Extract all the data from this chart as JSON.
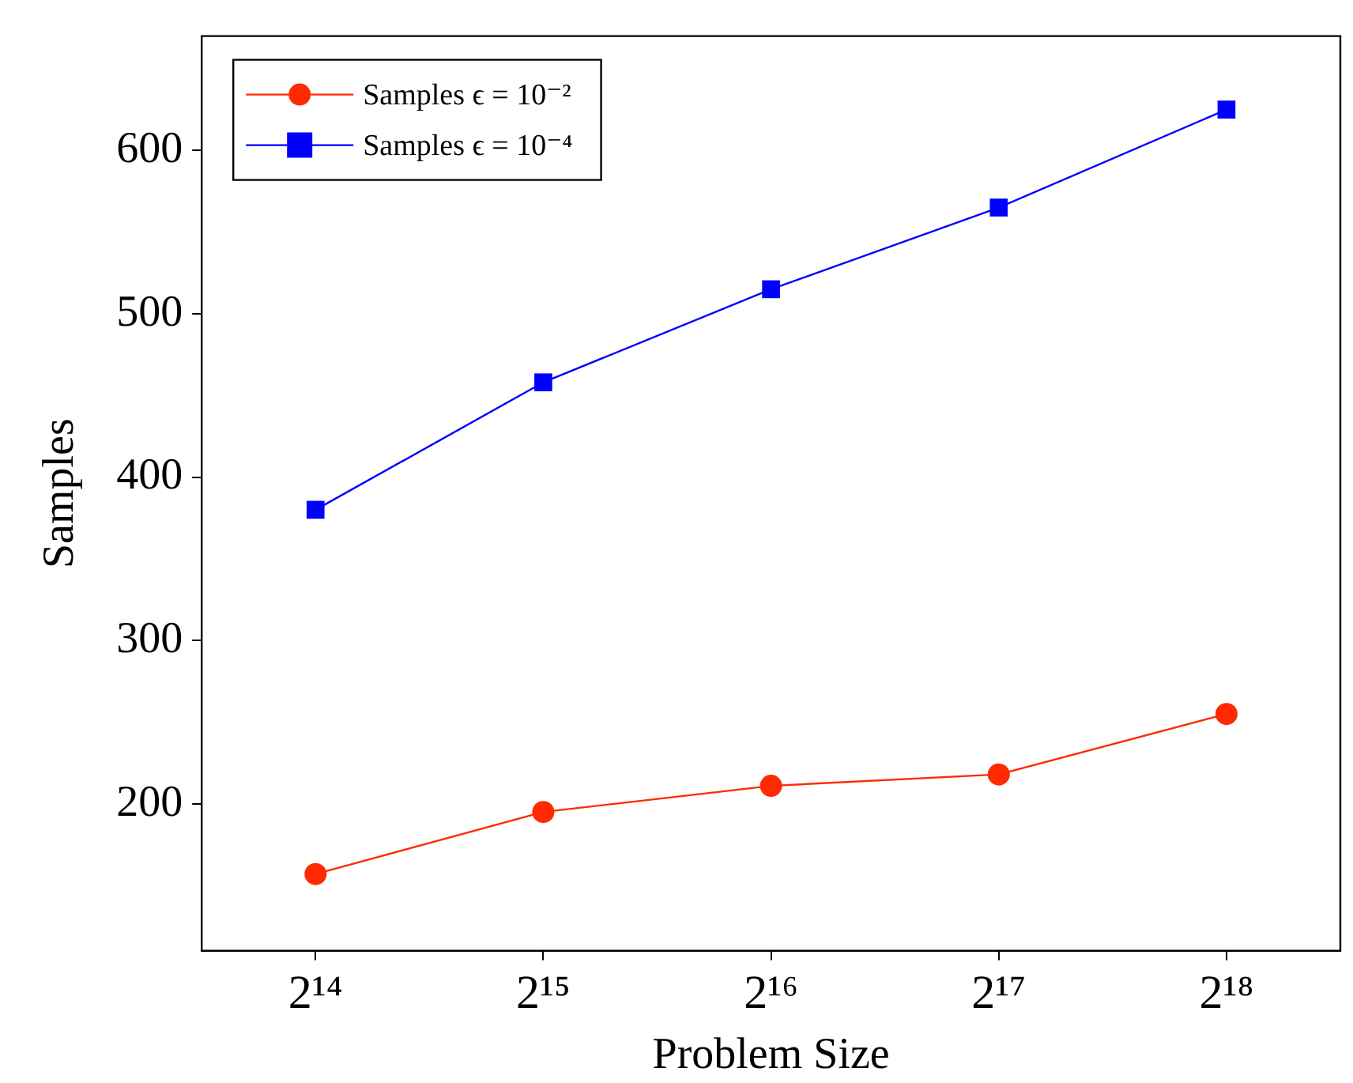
{
  "chart_data": {
    "type": "line",
    "xlabel": "Problem Size",
    "ylabel": "Samples",
    "categories": [
      "2¹⁴",
      "2¹⁵",
      "2¹⁶",
      "2¹⁷",
      "2¹⁸"
    ],
    "series": [
      {
        "name": "Samples ϵ = 10⁻²",
        "color": "#ff2a00",
        "marker": "circle",
        "values": [
          157,
          195,
          211,
          218,
          255
        ]
      },
      {
        "name": "Samples ϵ = 10⁻⁴",
        "color": "#0000ff",
        "marker": "square",
        "values": [
          380,
          458,
          515,
          565,
          625
        ]
      }
    ],
    "ylim": [
      110,
      670
    ],
    "yticks": [
      200,
      300,
      400,
      500,
      600
    ],
    "grid": false,
    "legend": "top left",
    "line_style": "solid"
  }
}
